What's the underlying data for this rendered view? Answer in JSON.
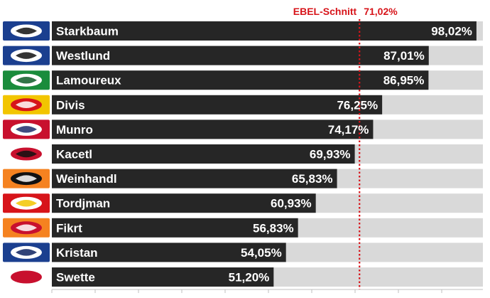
{
  "chart_data": {
    "type": "bar",
    "orientation": "horizontal",
    "title": "",
    "xlabel": "",
    "ylabel": "",
    "xlim": [
      0,
      100
    ],
    "grid": false,
    "categories": [
      "Starkbaum",
      "Westlund",
      "Lamoureux",
      "Divis",
      "Munro",
      "Kacetl",
      "Weinhandl",
      "Tordjman",
      "Fikrt",
      "Kristan",
      "Swette"
    ],
    "values": [
      98.02,
      87.01,
      86.95,
      76.25,
      74.17,
      69.93,
      65.83,
      60.93,
      56.83,
      54.05,
      51.2
    ],
    "value_labels": [
      "98,02%",
      "87,01%",
      "86,95%",
      "76,25%",
      "74,17%",
      "69,93%",
      "65,83%",
      "60,93%",
      "56,83%",
      "54,05%",
      "51,20%"
    ],
    "team_logos": [
      "eagle-logo-icon",
      "black-wings-logo-icon",
      "dragon-logo-icon",
      "capitals-logo-icon",
      "bull-logo-icon",
      "eagle-red-logo-icon",
      "tiger-logo-icon",
      "red-bull-logo-icon",
      "lion-logo-icon",
      "wolf-logo-icon",
      "kac-logo-icon"
    ],
    "reference_line": {
      "label": "EBEL-Schnitt",
      "value": 71.02,
      "value_label": "71,02%"
    },
    "colors": {
      "bar": "#262626",
      "track": "#d9d9d9",
      "reference": "#d7141a"
    }
  }
}
